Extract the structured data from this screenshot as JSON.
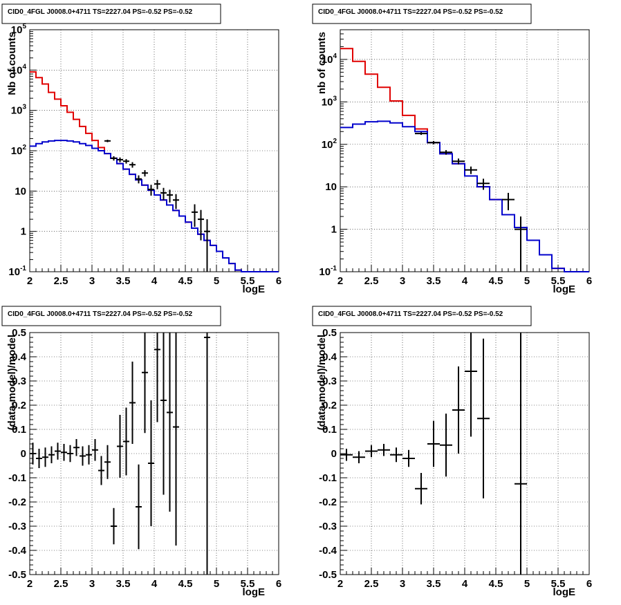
{
  "chart_data": [
    {
      "type": "line",
      "subtype": "step-histogram-with-errorbars",
      "title": "CID0_4FGL J0008.0+4711 TS=2227.04 PS=-0.52 PS=-0.52",
      "xlabel": "logE",
      "ylabel": "Nb of counts",
      "xlim": [
        2,
        6
      ],
      "ylim": [
        0.1,
        100000
      ],
      "yscale": "log",
      "grid": true,
      "x_ticks": [
        "2",
        "2.5",
        "3",
        "3.5",
        "4",
        "4.5",
        "5",
        "5.5",
        "6"
      ],
      "y_ticks": [
        {
          "base": "10",
          "exp": "-1"
        },
        {
          "base": "1",
          "exp": ""
        },
        {
          "base": "10",
          "exp": ""
        },
        {
          "base": "10",
          "exp": "2"
        },
        {
          "base": "10",
          "exp": "3"
        },
        {
          "base": "10",
          "exp": "4"
        },
        {
          "base": "10",
          "exp": "5"
        }
      ],
      "bin_width": 0.1,
      "series": [
        {
          "role": "total-model",
          "color": "#e00000",
          "values": [
            9000,
            6500,
            4500,
            2800,
            1900,
            1300,
            900,
            600,
            400,
            270,
            180,
            120,
            85,
            65,
            48,
            35,
            26,
            19,
            14,
            10.5,
            8,
            6,
            4.5,
            3.3,
            2.4,
            1.7,
            1.2,
            0.85,
            0.6,
            0.45,
            0.32,
            0.22,
            0.16,
            0.11,
            0.08,
            0.06,
            0.1,
            0.1,
            0.1,
            0.1
          ]
        },
        {
          "role": "source-model",
          "color": "#0000cc",
          "values": [
            130,
            150,
            165,
            175,
            180,
            180,
            175,
            165,
            150,
            135,
            115,
            100,
            85,
            65,
            48,
            35,
            26,
            19,
            14,
            10.5,
            8,
            6,
            4.5,
            3.3,
            2.4,
            1.7,
            1.2,
            0.85,
            0.6,
            0.45,
            0.32,
            0.22,
            0.16,
            0.11,
            0.08,
            0.06,
            0.1,
            0.1,
            0.1,
            0.1
          ]
        },
        {
          "role": "data",
          "color": "#000000",
          "points": [
            [
              3.25,
              175,
              12
            ],
            [
              3.35,
              65,
              8
            ],
            [
              3.45,
              60,
              8
            ],
            [
              3.55,
              55,
              7
            ],
            [
              3.65,
              45,
              7
            ],
            [
              3.75,
              20,
              4.5
            ],
            [
              3.85,
              28,
              5
            ],
            [
              3.95,
              11,
              3.3
            ],
            [
              4.05,
              15,
              3.9
            ],
            [
              4.15,
              9,
              3
            ],
            [
              4.25,
              8,
              2.8
            ],
            [
              4.35,
              6,
              2.4
            ],
            [
              4.65,
              3,
              1.7
            ],
            [
              4.75,
              2,
              1.4
            ],
            [
              4.85,
              1,
              1
            ]
          ]
        }
      ]
    },
    {
      "type": "line",
      "subtype": "step-histogram-with-errorbars",
      "title": "CID0_4FGL J0008.0+4711 TS=2227.04 PS=-0.52 PS=-0.52",
      "xlabel": "logE",
      "ylabel": "nb of counts",
      "xlim": [
        2,
        6
      ],
      "ylim": [
        0.1,
        50000
      ],
      "yscale": "log",
      "grid": true,
      "x_ticks": [
        "2",
        "2.5",
        "3",
        "3.5",
        "4",
        "4.5",
        "5",
        "5.5",
        "6"
      ],
      "y_ticks": [
        {
          "base": "10",
          "exp": "-1"
        },
        {
          "base": "1",
          "exp": ""
        },
        {
          "base": "10",
          "exp": ""
        },
        {
          "base": "10",
          "exp": "2"
        },
        {
          "base": "10",
          "exp": "3"
        },
        {
          "base": "10",
          "exp": "4"
        }
      ],
      "bin_width": 0.2,
      "series": [
        {
          "role": "total-model",
          "color": "#e00000",
          "values": [
            18000,
            9000,
            4500,
            2200,
            1050,
            480,
            230,
            110,
            60,
            35,
            18,
            10,
            5,
            2.2,
            1.1,
            0.55,
            0.25,
            0.12,
            0.1,
            0.1
          ]
        },
        {
          "role": "source-model",
          "color": "#0000cc",
          "values": [
            250,
            300,
            340,
            350,
            320,
            260,
            200,
            110,
            60,
            35,
            18,
            10,
            5,
            2.2,
            1.1,
            0.55,
            0.25,
            0.12,
            0.1,
            0.1
          ]
        },
        {
          "role": "data",
          "color": "#000000",
          "points": [
            [
              3.3,
              180,
              13
            ],
            [
              3.5,
              110,
              10
            ],
            [
              3.7,
              65,
              8
            ],
            [
              3.9,
              40,
              6.3
            ],
            [
              4.1,
              25,
              5
            ],
            [
              4.3,
              12,
              3.5
            ],
            [
              4.7,
              5,
              2.2
            ],
            [
              4.9,
              1,
              1
            ]
          ]
        }
      ]
    },
    {
      "type": "scatter",
      "subtype": "errorbars",
      "title": "CID0_4FGL J0008.0+4711 TS=2227.04 PS=-0.52 PS=-0.52",
      "xlabel": "logE",
      "ylabel": "(data-model)/model",
      "xlim": [
        2,
        6
      ],
      "ylim": [
        -0.5,
        0.5
      ],
      "yscale": "linear",
      "grid": true,
      "x_ticks": [
        "2",
        "2.5",
        "3",
        "3.5",
        "4",
        "4.5",
        "5",
        "5.5",
        "6"
      ],
      "y_ticks": [
        "-0.5",
        "-0.4",
        "-0.3",
        "-0.2",
        "-0.1",
        "0",
        "0.1",
        "0.2",
        "0.3",
        "0.4",
        "0.5"
      ],
      "bin_width": 0.1,
      "series": [
        {
          "role": "data",
          "color": "#000000",
          "points": [
            [
              2.05,
              0.0,
              0.045
            ],
            [
              2.15,
              -0.02,
              0.04
            ],
            [
              2.25,
              -0.015,
              0.04
            ],
            [
              2.35,
              -0.005,
              0.035
            ],
            [
              2.45,
              0.01,
              0.035
            ],
            [
              2.55,
              0.005,
              0.035
            ],
            [
              2.65,
              0.0,
              0.035
            ],
            [
              2.75,
              0.025,
              0.035
            ],
            [
              2.85,
              -0.01,
              0.04
            ],
            [
              2.95,
              -0.005,
              0.04
            ],
            [
              3.05,
              0.015,
              0.045
            ],
            [
              3.15,
              -0.07,
              0.06
            ],
            [
              3.25,
              -0.035,
              0.07
            ],
            [
              3.35,
              -0.3,
              0.075
            ],
            [
              3.45,
              0.03,
              0.13
            ],
            [
              3.55,
              0.05,
              0.14
            ],
            [
              3.65,
              0.21,
              0.17
            ],
            [
              3.75,
              -0.22,
              0.175
            ],
            [
              3.85,
              0.335,
              0.25
            ],
            [
              3.95,
              -0.04,
              0.26
            ],
            [
              4.05,
              0.43,
              0.3
            ],
            [
              4.15,
              0.22,
              0.39
            ],
            [
              4.25,
              0.17,
              0.41
            ],
            [
              4.35,
              0.11,
              0.49
            ],
            [
              4.85,
              0.48,
              1.0
            ]
          ]
        }
      ]
    },
    {
      "type": "scatter",
      "subtype": "errorbars",
      "title": "CID0_4FGL J0008.0+4711 TS=2227.04 PS=-0.52 PS=-0.52",
      "xlabel": "logE",
      "ylabel": "(data-model)/model",
      "xlim": [
        2,
        6
      ],
      "ylim": [
        -0.5,
        0.5
      ],
      "yscale": "linear",
      "grid": true,
      "x_ticks": [
        "2",
        "2.5",
        "3",
        "3.5",
        "4",
        "4.5",
        "5",
        "5.5",
        "6"
      ],
      "y_ticks": [
        "-0.5",
        "-0.4",
        "-0.3",
        "-0.2",
        "-0.1",
        "0",
        "0.1",
        "0.2",
        "0.3",
        "0.4",
        "0.5"
      ],
      "bin_width": 0.2,
      "series": [
        {
          "role": "data",
          "color": "#000000",
          "points": [
            [
              2.1,
              -0.005,
              0.025
            ],
            [
              2.3,
              -0.015,
              0.025
            ],
            [
              2.5,
              0.01,
              0.025
            ],
            [
              2.7,
              0.015,
              0.025
            ],
            [
              2.9,
              -0.005,
              0.03
            ],
            [
              3.1,
              -0.02,
              0.035
            ],
            [
              3.3,
              -0.145,
              0.065
            ],
            [
              3.5,
              0.04,
              0.095
            ],
            [
              3.7,
              0.035,
              0.13
            ],
            [
              3.9,
              0.18,
              0.18
            ],
            [
              4.1,
              0.34,
              0.27
            ],
            [
              4.3,
              0.145,
              0.33
            ],
            [
              4.9,
              -0.125,
              1.0
            ]
          ]
        }
      ]
    }
  ]
}
